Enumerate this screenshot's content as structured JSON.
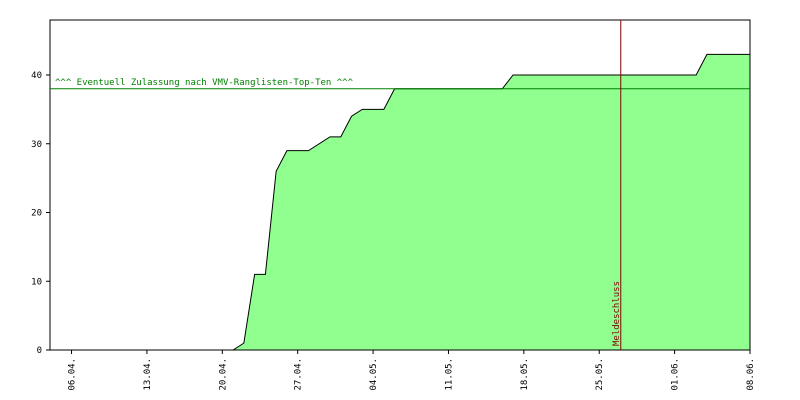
{
  "chart_data": {
    "type": "area",
    "x": [
      "04.04.",
      "21.04.",
      "22.04.",
      "23.04.",
      "24.04.",
      "25.04.",
      "26.04.",
      "28.04.",
      "30.04.",
      "01.05.",
      "02.05.",
      "03.05.",
      "05.05.",
      "06.05.",
      "16.05.",
      "17.05.",
      "03.06.",
      "04.06.",
      "08.06."
    ],
    "values": [
      0,
      0,
      1,
      11,
      11,
      26,
      29,
      29,
      31,
      31,
      34,
      35,
      35,
      38,
      38,
      40,
      40,
      43,
      43
    ],
    "color": "#90ff90",
    "line_color": "#000000",
    "xlim": [
      "04.04.",
      "08.06."
    ],
    "xticks": [
      "06.04.",
      "13.04.",
      "20.04.",
      "27.04.",
      "04.05.",
      "11.05.",
      "18.05.",
      "25.05.",
      "01.06.",
      "08.06."
    ],
    "ylim": [
      0,
      48
    ],
    "yticks": [
      0,
      10,
      20,
      30,
      40
    ],
    "annotations": [
      {
        "text": "^^^ Eventuell Zulassung nach VMV-Ranglisten-Top-Ten ^^^",
        "y": 38,
        "color": "#008000"
      },
      {
        "text": "Meldeschluss",
        "x": "27.05.",
        "color": "#800000"
      }
    ]
  }
}
